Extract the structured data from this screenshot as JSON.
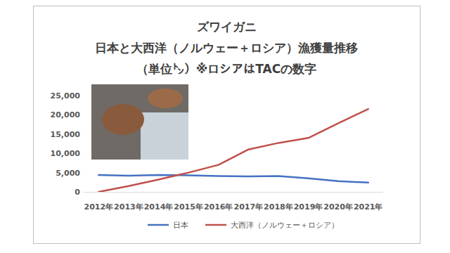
{
  "chart_data": {
    "type": "line",
    "title": [
      "ズワイガニ",
      "日本と大西洋（ノルウェー＋ロシア）漁獲量推移",
      "（単位㌧）※ロシアはTACの数字"
    ],
    "categories": [
      "2012年",
      "2013年",
      "2014年",
      "2015年",
      "2016年",
      "2017年",
      "2018年",
      "2019年",
      "2020年",
      "2021年"
    ],
    "series": [
      {
        "name": "日本",
        "color": "#4472c4",
        "values": [
          4400,
          4200,
          4400,
          4300,
          4100,
          4000,
          4100,
          3500,
          2800,
          2400
        ]
      },
      {
        "name": "大西洋（ノルウェー＋ロシア）",
        "color": "#c0504d",
        "values": [
          0,
          1500,
          3200,
          5000,
          7000,
          11000,
          12700,
          14000,
          17800,
          21500
        ]
      }
    ],
    "ylim": [
      0,
      25000
    ],
    "yticks": [
      0,
      {
        "value": 5000,
        "label": "5,000"
      },
      {
        "value": 10000,
        "label": "10,000"
      },
      {
        "value": 15000,
        "label": "15,000"
      },
      {
        "value": 20000,
        "label": "20,000"
      },
      {
        "value": 25000,
        "label": "25,000"
      }
    ],
    "grid": false,
    "legend": "bottom"
  }
}
